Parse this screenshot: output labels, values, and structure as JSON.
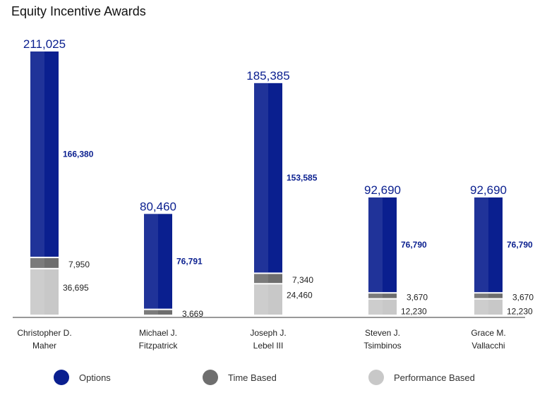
{
  "chart_data": {
    "type": "bar",
    "stacked": true,
    "title": "Equity Incentive Awards",
    "categories": [
      [
        "Christopher D.",
        "Maher"
      ],
      [
        "Michael J.",
        "Fitzpatrick"
      ],
      [
        "Joseph J.",
        "Lebel III"
      ],
      [
        "Steven J.",
        "Tsimbinos"
      ],
      [
        "Grace M.",
        "Vallacchi"
      ]
    ],
    "totals": [
      "211,025",
      "80,460",
      "185,385",
      "92,690",
      "92,690"
    ],
    "series": [
      {
        "name": "Performance Based",
        "color": "#c8c8c8",
        "values": [
          36695,
          0,
          24460,
          12230,
          12230
        ],
        "labels": [
          "36,695",
          "",
          "24,460",
          "12,230",
          "12,230"
        ]
      },
      {
        "name": "Time Based",
        "color": "#6e6e6e",
        "values": [
          7950,
          3669,
          7340,
          3670,
          3670
        ],
        "labels": [
          "7,950",
          "3,669",
          "7,340",
          "3,670",
          "3,670"
        ]
      },
      {
        "name": "Options",
        "color": "#0a1f8f",
        "values": [
          166380,
          76791,
          153585,
          76790,
          76790
        ],
        "labels": [
          "166,380",
          "76,791",
          "153,585",
          "76,790",
          "76,790"
        ]
      }
    ],
    "ylim": [
      0,
      211025
    ],
    "grid": false,
    "legend_position": "bottom"
  },
  "legend": [
    {
      "label": "Options",
      "color": "#0a1f8f"
    },
    {
      "label": "Time Based",
      "color": "#6e6e6e"
    },
    {
      "label": "Performance Based",
      "color": "#c8c8c8"
    }
  ]
}
